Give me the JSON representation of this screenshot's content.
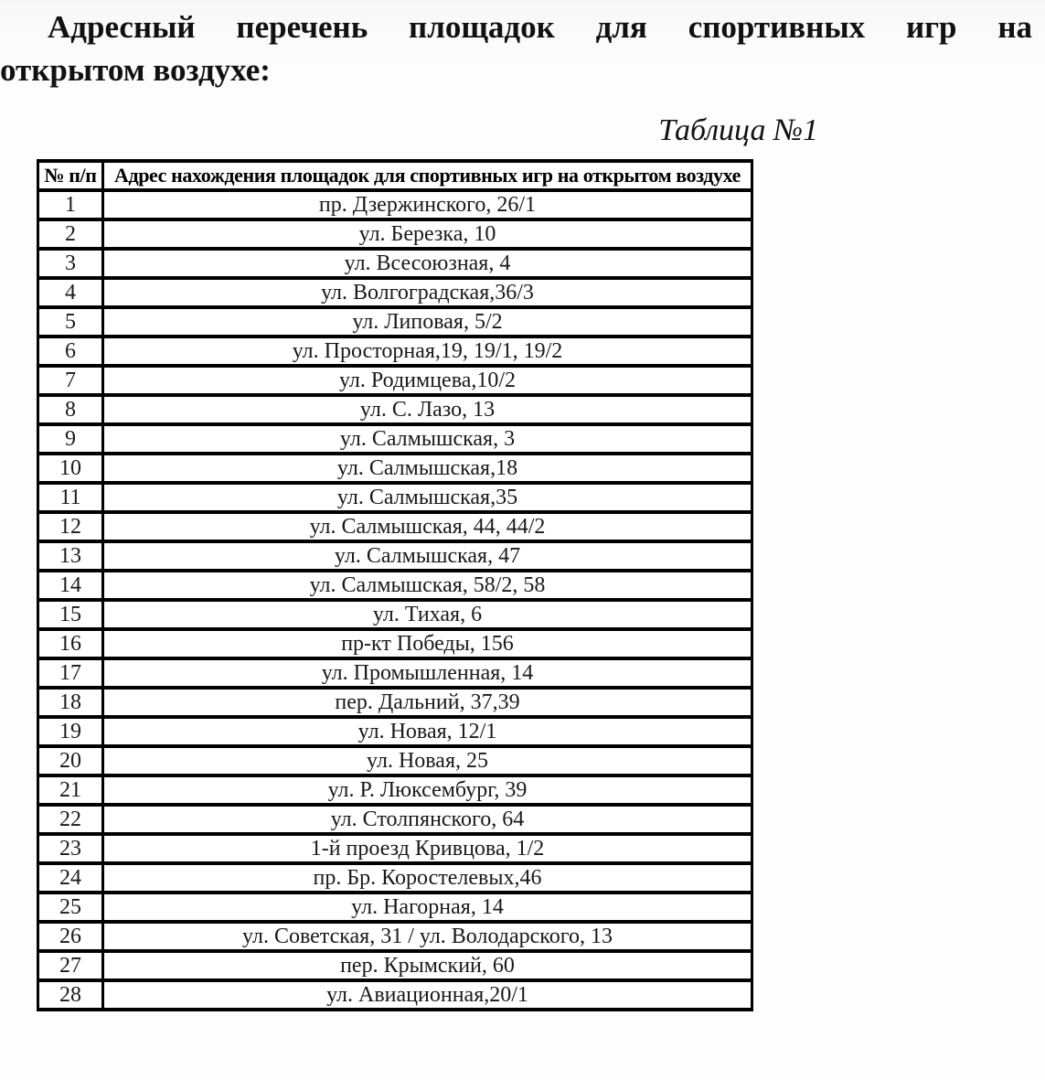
{
  "page": {
    "title_line1": "Адресный перечень площадок для спортивных игр на",
    "title_line2": "открытом воздухе:",
    "table_caption": "Таблица №1"
  },
  "table": {
    "headers": [
      "№ п/п",
      "Адрес нахождения площадок для спортивных игр на открытом воздухе"
    ],
    "rows": [
      {
        "num": "1",
        "address": "пр. Дзержинского, 26/1"
      },
      {
        "num": "2",
        "address": "ул. Березка, 10"
      },
      {
        "num": "3",
        "address": "ул. Всесоюзная, 4"
      },
      {
        "num": "4",
        "address": "ул. Волгоградская,36/3"
      },
      {
        "num": "5",
        "address": "ул. Липовая, 5/2"
      },
      {
        "num": "6",
        "address": "ул. Просторная,19, 19/1, 19/2"
      },
      {
        "num": "7",
        "address": "ул. Родимцева,10/2"
      },
      {
        "num": "8",
        "address": "ул. С. Лазо, 13"
      },
      {
        "num": "9",
        "address": "ул. Салмышская, 3"
      },
      {
        "num": "10",
        "address": "ул. Салмышская,18"
      },
      {
        "num": "11",
        "address": "ул. Салмышская,35"
      },
      {
        "num": "12",
        "address": "ул. Салмышская, 44, 44/2"
      },
      {
        "num": "13",
        "address": "ул. Салмышская, 47"
      },
      {
        "num": "14",
        "address": "ул. Салмышская, 58/2, 58"
      },
      {
        "num": "15",
        "address": "ул. Тихая, 6"
      },
      {
        "num": "16",
        "address": "пр-кт Победы, 156"
      },
      {
        "num": "17",
        "address": "ул. Промышленная, 14"
      },
      {
        "num": "18",
        "address": "пер. Дальний, 37,39"
      },
      {
        "num": "19",
        "address": "ул. Новая, 12/1"
      },
      {
        "num": "20",
        "address": "ул. Новая, 25"
      },
      {
        "num": "21",
        "address": "ул. Р. Люксембург, 39"
      },
      {
        "num": "22",
        "address": "ул. Столпянского, 64"
      },
      {
        "num": "23",
        "address": "1-й проезд Кривцова, 1/2"
      },
      {
        "num": "24",
        "address": "пр. Бр. Коростелевых,46"
      },
      {
        "num": "25",
        "address": "ул. Нагорная, 14"
      },
      {
        "num": "26",
        "address": "ул. Советская, 31 / ул. Володарского, 13"
      },
      {
        "num": "27",
        "address": "пер. Крымский, 60"
      },
      {
        "num": "28",
        "address": "ул. Авиационная,20/1"
      }
    ]
  },
  "colors": {
    "text": "#111111",
    "table_border": "#000000",
    "background": "#fbfbfb"
  }
}
